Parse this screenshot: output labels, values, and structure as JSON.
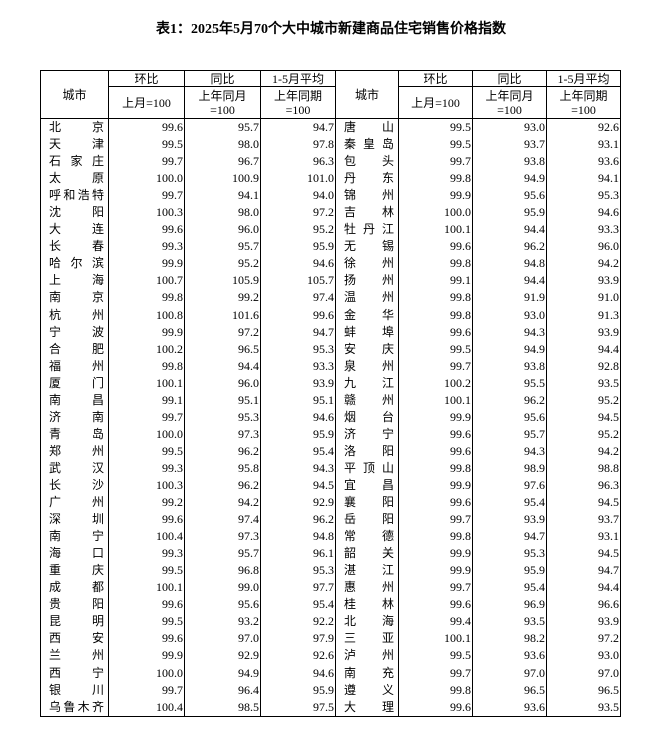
{
  "title": "表1：2025年5月70个大中城市新建商品住宅销售价格指数",
  "header": {
    "city": "城市",
    "mom": "环比",
    "yoy": "同比",
    "avg": "1-5月平均",
    "mom_base": "上月=100",
    "yoy_base_1": "上年同月",
    "yoy_base_2": "=100",
    "avg_base_1": "上年同期",
    "avg_base_2": "=100"
  },
  "rows": [
    [
      [
        "北京",
        "99.6",
        "95.7",
        "94.7"
      ],
      [
        "唐山",
        "99.5",
        "93.0",
        "92.6"
      ]
    ],
    [
      [
        "天津",
        "99.5",
        "98.0",
        "97.8"
      ],
      [
        "秦皇岛",
        "99.5",
        "93.7",
        "93.1"
      ]
    ],
    [
      [
        "石家庄",
        "99.7",
        "96.7",
        "96.3"
      ],
      [
        "包头",
        "99.7",
        "93.8",
        "93.6"
      ]
    ],
    [
      [
        "太原",
        "100.0",
        "100.9",
        "101.0"
      ],
      [
        "丹东",
        "99.8",
        "94.9",
        "94.1"
      ]
    ],
    [
      [
        "呼和浩特",
        "99.7",
        "94.1",
        "94.0"
      ],
      [
        "锦州",
        "99.9",
        "95.6",
        "95.3"
      ]
    ],
    [
      [
        "沈阳",
        "100.3",
        "98.0",
        "97.2"
      ],
      [
        "吉林",
        "100.0",
        "95.9",
        "94.6"
      ]
    ],
    [
      [
        "大连",
        "99.6",
        "96.0",
        "95.2"
      ],
      [
        "牡丹江",
        "100.1",
        "94.4",
        "93.3"
      ]
    ],
    [
      [
        "长春",
        "99.3",
        "95.7",
        "95.9"
      ],
      [
        "无锡",
        "99.6",
        "96.2",
        "96.0"
      ]
    ],
    [
      [
        "哈尔滨",
        "99.9",
        "95.2",
        "94.6"
      ],
      [
        "徐州",
        "99.8",
        "94.8",
        "94.2"
      ]
    ],
    [
      [
        "上海",
        "100.7",
        "105.9",
        "105.7"
      ],
      [
        "扬州",
        "99.1",
        "94.4",
        "93.9"
      ]
    ],
    [
      [
        "南京",
        "99.8",
        "99.2",
        "97.4"
      ],
      [
        "温州",
        "99.8",
        "91.9",
        "91.0"
      ]
    ],
    [
      [
        "杭州",
        "100.8",
        "101.6",
        "99.6"
      ],
      [
        "金华",
        "99.8",
        "93.0",
        "91.3"
      ]
    ],
    [
      [
        "宁波",
        "99.9",
        "97.2",
        "94.7"
      ],
      [
        "蚌埠",
        "99.6",
        "94.3",
        "93.9"
      ]
    ],
    [
      [
        "合肥",
        "100.2",
        "96.5",
        "95.3"
      ],
      [
        "安庆",
        "99.5",
        "94.9",
        "94.4"
      ]
    ],
    [
      [
        "福州",
        "99.8",
        "94.4",
        "93.3"
      ],
      [
        "泉州",
        "99.7",
        "93.8",
        "92.8"
      ]
    ],
    [
      [
        "厦门",
        "100.1",
        "96.0",
        "93.9"
      ],
      [
        "九江",
        "100.2",
        "95.5",
        "93.5"
      ]
    ],
    [
      [
        "南昌",
        "99.1",
        "95.1",
        "95.1"
      ],
      [
        "赣州",
        "100.1",
        "96.2",
        "95.2"
      ]
    ],
    [
      [
        "济南",
        "99.7",
        "95.3",
        "94.6"
      ],
      [
        "烟台",
        "99.9",
        "95.6",
        "94.5"
      ]
    ],
    [
      [
        "青岛",
        "100.0",
        "97.3",
        "95.9"
      ],
      [
        "济宁",
        "99.6",
        "95.7",
        "95.2"
      ]
    ],
    [
      [
        "郑州",
        "99.5",
        "96.2",
        "95.4"
      ],
      [
        "洛阳",
        "99.6",
        "94.3",
        "94.2"
      ]
    ],
    [
      [
        "武汉",
        "99.3",
        "95.8",
        "94.3"
      ],
      [
        "平顶山",
        "99.8",
        "98.9",
        "98.8"
      ]
    ],
    [
      [
        "长沙",
        "100.3",
        "96.2",
        "94.5"
      ],
      [
        "宜昌",
        "99.9",
        "97.6",
        "96.3"
      ]
    ],
    [
      [
        "广州",
        "99.2",
        "94.2",
        "92.9"
      ],
      [
        "襄阳",
        "99.6",
        "95.4",
        "94.5"
      ]
    ],
    [
      [
        "深圳",
        "99.6",
        "97.4",
        "96.2"
      ],
      [
        "岳阳",
        "99.7",
        "93.9",
        "93.7"
      ]
    ],
    [
      [
        "南宁",
        "100.4",
        "97.3",
        "94.8"
      ],
      [
        "常德",
        "99.8",
        "94.7",
        "93.1"
      ]
    ],
    [
      [
        "海口",
        "99.3",
        "95.7",
        "96.1"
      ],
      [
        "韶关",
        "99.9",
        "95.3",
        "94.5"
      ]
    ],
    [
      [
        "重庆",
        "99.5",
        "96.8",
        "95.3"
      ],
      [
        "湛江",
        "99.9",
        "95.9",
        "94.7"
      ]
    ],
    [
      [
        "成都",
        "100.1",
        "99.0",
        "97.7"
      ],
      [
        "惠州",
        "99.7",
        "95.4",
        "94.4"
      ]
    ],
    [
      [
        "贵阳",
        "99.6",
        "95.6",
        "95.4"
      ],
      [
        "桂林",
        "99.6",
        "96.9",
        "96.6"
      ]
    ],
    [
      [
        "昆明",
        "99.5",
        "93.2",
        "92.2"
      ],
      [
        "北海",
        "99.4",
        "93.5",
        "93.9"
      ]
    ],
    [
      [
        "西安",
        "99.6",
        "97.0",
        "97.9"
      ],
      [
        "三亚",
        "100.1",
        "98.2",
        "97.2"
      ]
    ],
    [
      [
        "兰州",
        "99.9",
        "92.9",
        "92.6"
      ],
      [
        "泸州",
        "99.5",
        "93.6",
        "93.0"
      ]
    ],
    [
      [
        "西宁",
        "100.0",
        "94.9",
        "94.6"
      ],
      [
        "南充",
        "99.7",
        "97.0",
        "97.0"
      ]
    ],
    [
      [
        "银川",
        "99.7",
        "96.4",
        "95.9"
      ],
      [
        "遵义",
        "99.8",
        "96.5",
        "96.5"
      ]
    ],
    [
      [
        "乌鲁木齐",
        "100.4",
        "98.5",
        "97.5"
      ],
      [
        "大理",
        "99.6",
        "93.6",
        "93.5"
      ]
    ]
  ]
}
